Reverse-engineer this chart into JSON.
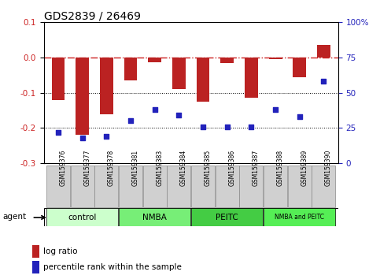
{
  "title": "GDS2839 / 26469",
  "samples": [
    "GSM159376",
    "GSM159377",
    "GSM159378",
    "GSM159381",
    "GSM159383",
    "GSM159384",
    "GSM159385",
    "GSM159386",
    "GSM159387",
    "GSM159388",
    "GSM159389",
    "GSM159390"
  ],
  "log_ratio": [
    -0.12,
    -0.22,
    -0.16,
    -0.065,
    -0.013,
    -0.09,
    -0.125,
    -0.015,
    -0.115,
    -0.005,
    -0.055,
    0.035
  ],
  "percentile_rank": [
    22,
    18,
    19,
    30,
    38,
    34,
    26,
    26,
    26,
    38,
    33,
    58
  ],
  "ylim_left": [
    -0.3,
    0.1
  ],
  "ylim_right": [
    0,
    100
  ],
  "yticks_left": [
    -0.3,
    -0.2,
    -0.1,
    0.0,
    0.1
  ],
  "yticks_right": [
    0,
    25,
    50,
    75,
    100
  ],
  "ytick_labels_right": [
    "0",
    "25",
    "50",
    "75",
    "100%"
  ],
  "bar_color": "#bb2222",
  "dot_color": "#2222bb",
  "hline_color": "#cc2222",
  "dotline_color": "#000000",
  "group_defs": [
    {
      "start": 0,
      "end": 2,
      "label": "control",
      "color": "#ccffcc"
    },
    {
      "start": 3,
      "end": 5,
      "label": "NMBA",
      "color": "#77ee77"
    },
    {
      "start": 6,
      "end": 8,
      "label": "PEITC",
      "color": "#44cc44"
    },
    {
      "start": 9,
      "end": 11,
      "label": "NMBA and PEITC",
      "color": "#55ee55"
    }
  ],
  "bar_width": 0.55,
  "title_fontsize": 10,
  "tick_fontsize": 7.5,
  "samp_fontsize": 5.5,
  "legend_items": [
    {
      "label": "log ratio",
      "color": "#bb2222"
    },
    {
      "label": "percentile rank within the sample",
      "color": "#2222bb"
    }
  ],
  "agent_label": "agent"
}
